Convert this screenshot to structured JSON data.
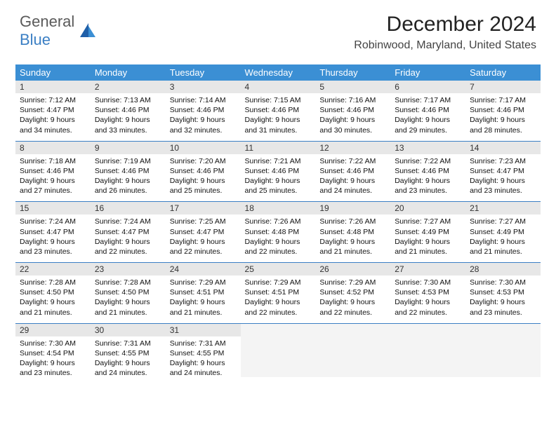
{
  "logo": {
    "part1": "General",
    "part2": "Blue"
  },
  "title": "December 2024",
  "location": "Robinwood, Maryland, United States",
  "colors": {
    "header_bg": "#3b8fd4",
    "header_text": "#ffffff",
    "daynum_bg": "#e7e7e7",
    "row_border": "#3b7fc4",
    "logo_gray": "#5a5a5a",
    "logo_blue": "#3b7fc4"
  },
  "weekdays": [
    "Sunday",
    "Monday",
    "Tuesday",
    "Wednesday",
    "Thursday",
    "Friday",
    "Saturday"
  ],
  "weeks": [
    [
      {
        "n": "1",
        "sr": "7:12 AM",
        "ss": "4:47 PM",
        "dl": "9 hours and 34 minutes."
      },
      {
        "n": "2",
        "sr": "7:13 AM",
        "ss": "4:46 PM",
        "dl": "9 hours and 33 minutes."
      },
      {
        "n": "3",
        "sr": "7:14 AM",
        "ss": "4:46 PM",
        "dl": "9 hours and 32 minutes."
      },
      {
        "n": "4",
        "sr": "7:15 AM",
        "ss": "4:46 PM",
        "dl": "9 hours and 31 minutes."
      },
      {
        "n": "5",
        "sr": "7:16 AM",
        "ss": "4:46 PM",
        "dl": "9 hours and 30 minutes."
      },
      {
        "n": "6",
        "sr": "7:17 AM",
        "ss": "4:46 PM",
        "dl": "9 hours and 29 minutes."
      },
      {
        "n": "7",
        "sr": "7:17 AM",
        "ss": "4:46 PM",
        "dl": "9 hours and 28 minutes."
      }
    ],
    [
      {
        "n": "8",
        "sr": "7:18 AM",
        "ss": "4:46 PM",
        "dl": "9 hours and 27 minutes."
      },
      {
        "n": "9",
        "sr": "7:19 AM",
        "ss": "4:46 PM",
        "dl": "9 hours and 26 minutes."
      },
      {
        "n": "10",
        "sr": "7:20 AM",
        "ss": "4:46 PM",
        "dl": "9 hours and 25 minutes."
      },
      {
        "n": "11",
        "sr": "7:21 AM",
        "ss": "4:46 PM",
        "dl": "9 hours and 25 minutes."
      },
      {
        "n": "12",
        "sr": "7:22 AM",
        "ss": "4:46 PM",
        "dl": "9 hours and 24 minutes."
      },
      {
        "n": "13",
        "sr": "7:22 AM",
        "ss": "4:46 PM",
        "dl": "9 hours and 23 minutes."
      },
      {
        "n": "14",
        "sr": "7:23 AM",
        "ss": "4:47 PM",
        "dl": "9 hours and 23 minutes."
      }
    ],
    [
      {
        "n": "15",
        "sr": "7:24 AM",
        "ss": "4:47 PM",
        "dl": "9 hours and 23 minutes."
      },
      {
        "n": "16",
        "sr": "7:24 AM",
        "ss": "4:47 PM",
        "dl": "9 hours and 22 minutes."
      },
      {
        "n": "17",
        "sr": "7:25 AM",
        "ss": "4:47 PM",
        "dl": "9 hours and 22 minutes."
      },
      {
        "n": "18",
        "sr": "7:26 AM",
        "ss": "4:48 PM",
        "dl": "9 hours and 22 minutes."
      },
      {
        "n": "19",
        "sr": "7:26 AM",
        "ss": "4:48 PM",
        "dl": "9 hours and 21 minutes."
      },
      {
        "n": "20",
        "sr": "7:27 AM",
        "ss": "4:49 PM",
        "dl": "9 hours and 21 minutes."
      },
      {
        "n": "21",
        "sr": "7:27 AM",
        "ss": "4:49 PM",
        "dl": "9 hours and 21 minutes."
      }
    ],
    [
      {
        "n": "22",
        "sr": "7:28 AM",
        "ss": "4:50 PM",
        "dl": "9 hours and 21 minutes."
      },
      {
        "n": "23",
        "sr": "7:28 AM",
        "ss": "4:50 PM",
        "dl": "9 hours and 21 minutes."
      },
      {
        "n": "24",
        "sr": "7:29 AM",
        "ss": "4:51 PM",
        "dl": "9 hours and 21 minutes."
      },
      {
        "n": "25",
        "sr": "7:29 AM",
        "ss": "4:51 PM",
        "dl": "9 hours and 22 minutes."
      },
      {
        "n": "26",
        "sr": "7:29 AM",
        "ss": "4:52 PM",
        "dl": "9 hours and 22 minutes."
      },
      {
        "n": "27",
        "sr": "7:30 AM",
        "ss": "4:53 PM",
        "dl": "9 hours and 22 minutes."
      },
      {
        "n": "28",
        "sr": "7:30 AM",
        "ss": "4:53 PM",
        "dl": "9 hours and 23 minutes."
      }
    ],
    [
      {
        "n": "29",
        "sr": "7:30 AM",
        "ss": "4:54 PM",
        "dl": "9 hours and 23 minutes."
      },
      {
        "n": "30",
        "sr": "7:31 AM",
        "ss": "4:55 PM",
        "dl": "9 hours and 24 minutes."
      },
      {
        "n": "31",
        "sr": "7:31 AM",
        "ss": "4:55 PM",
        "dl": "9 hours and 24 minutes."
      },
      null,
      null,
      null,
      null
    ]
  ]
}
